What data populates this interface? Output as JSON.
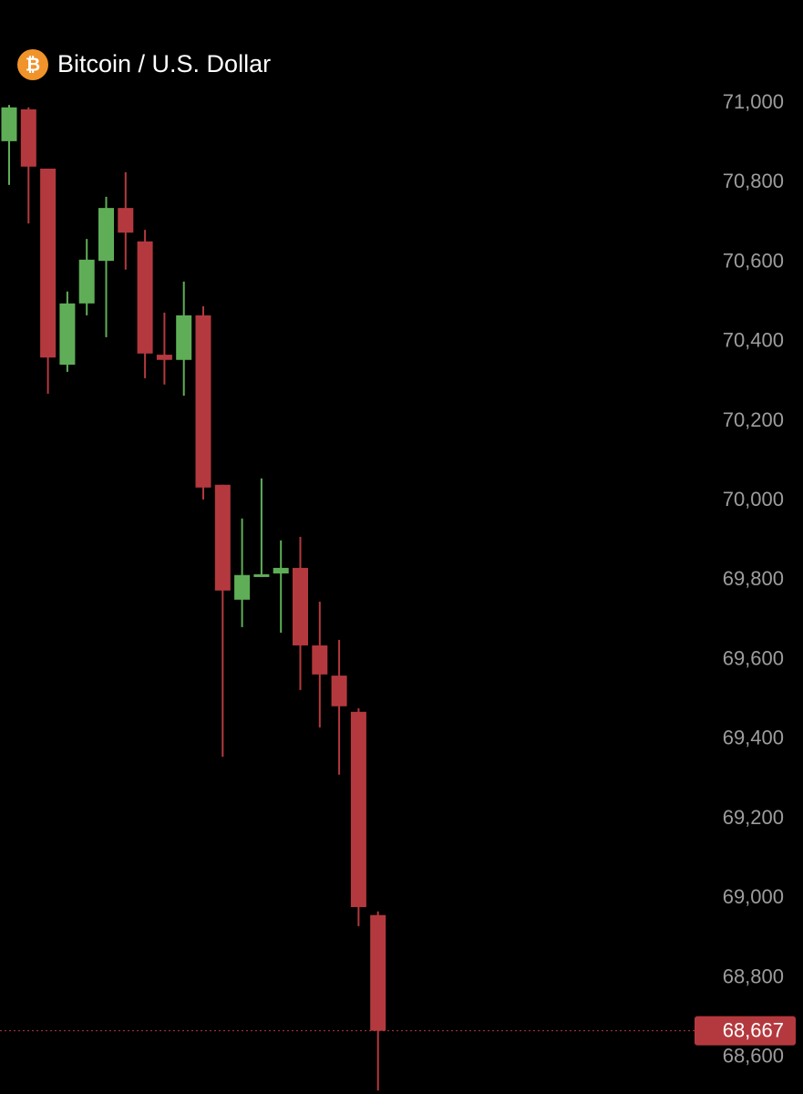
{
  "chart_data": {
    "type": "candlestick",
    "title": "Bitcoin / U.S. Dollar",
    "icon": "₿",
    "open": [
      70904,
      70984,
      70835,
      70342,
      70496,
      70603,
      70736,
      70652,
      70367,
      70354,
      70466,
      70040,
      69751,
      69808,
      69817,
      69831,
      69636,
      69560,
      69469,
      68958
    ],
    "high": [
      70995,
      70989,
      70835,
      70526,
      70658,
      70764,
      70826,
      70681,
      70473,
      70551,
      70489,
      70040,
      69955,
      70056,
      69900,
      69909,
      69746,
      69650,
      69478,
      68967
    ],
    "low": [
      70794,
      70697,
      70269,
      70324,
      70466,
      70411,
      70581,
      70308,
      70292,
      70264,
      70003,
      69356,
      69682,
      69808,
      69668,
      69524,
      69430,
      69311,
      68930,
      68517
    ],
    "close": [
      70989,
      70840,
      70360,
      70496,
      70606,
      70736,
      70674,
      70370,
      70354,
      70466,
      70033,
      69774,
      69813,
      69815,
      69831,
      69636,
      69563,
      69483,
      68978,
      68667
    ],
    "up_color": "#5fae57",
    "down_color": "#b4393e",
    "ylim": [
      68508,
      71259
    ],
    "yticks": [
      {
        "value": 68600,
        "label": "68,600"
      },
      {
        "value": 68800,
        "label": "68,800"
      },
      {
        "value": 69000,
        "label": "69,000"
      },
      {
        "value": 69200,
        "label": "69,200"
      },
      {
        "value": 69400,
        "label": "69,400"
      },
      {
        "value": 69600,
        "label": "69,600"
      },
      {
        "value": 69800,
        "label": "69,800"
      },
      {
        "value": 70000,
        "label": "70,000"
      },
      {
        "value": 70200,
        "label": "70,200"
      },
      {
        "value": 70400,
        "label": "70,400"
      },
      {
        "value": 70600,
        "label": "70,600"
      },
      {
        "value": 70800,
        "label": "70,800"
      },
      {
        "value": 71000,
        "label": "71,000"
      }
    ],
    "last_price": {
      "value": 68667,
      "label": "68,667"
    }
  }
}
